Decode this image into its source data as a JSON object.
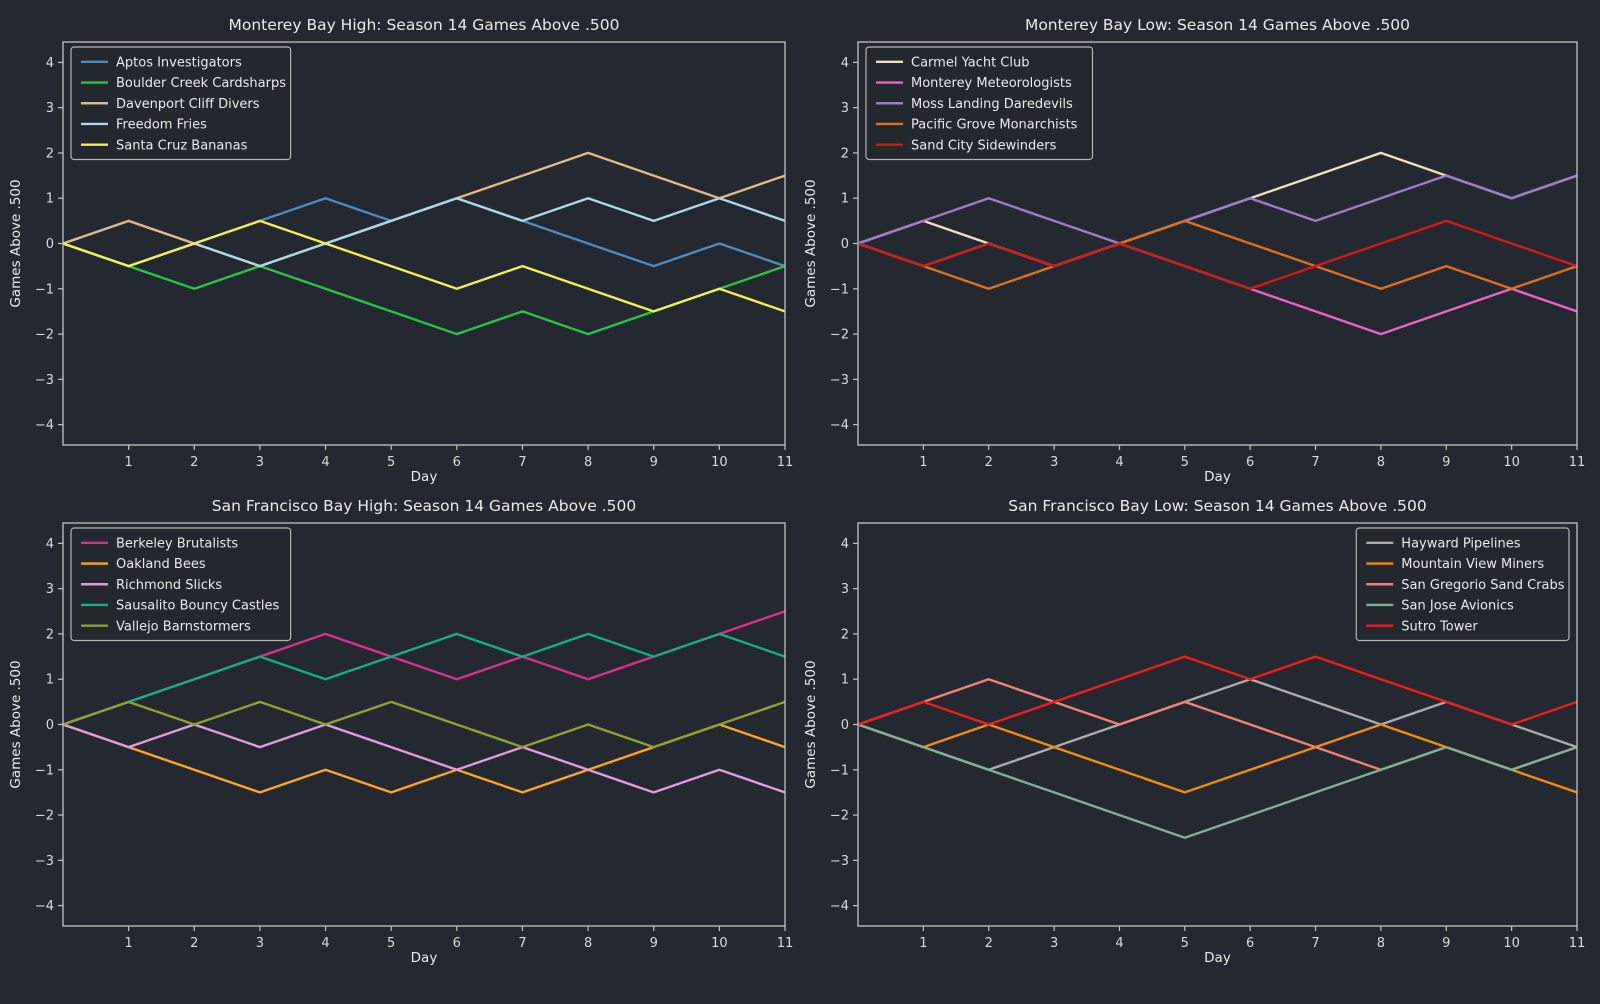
{
  "figure": {
    "background": "#242830",
    "text_color": "#e9eaec",
    "tick_label_color": "#d8dadc",
    "spine_color": "#c4c4c4",
    "legend_border_color": "#b5b5b5",
    "xlabel": "Day",
    "ylabel": "Games Above .500"
  },
  "chart_data": [
    {
      "type": "line",
      "title": "Monterey Bay High: Season 14 Games Above .500",
      "xlabel": "Day",
      "ylabel": "Games Above .500",
      "x": [
        0,
        1,
        2,
        3,
        4,
        5,
        6,
        7,
        8,
        9,
        10,
        11
      ],
      "xticks": [
        1,
        2,
        3,
        4,
        5,
        6,
        7,
        8,
        9,
        10,
        11
      ],
      "yticks": [
        -4,
        -3,
        -2,
        -1,
        0,
        1,
        2,
        3,
        4
      ],
      "xlim": [
        0,
        11
      ],
      "ylim": [
        -4.45,
        4.45
      ],
      "grid": false,
      "legend_position": "upper-left",
      "series": [
        {
          "name": "Aptos Investigators",
          "color": "#4e8bc0",
          "values": [
            0,
            0.5,
            0,
            0.5,
            1,
            0.5,
            1,
            0.5,
            0,
            -0.5,
            0,
            -0.5
          ]
        },
        {
          "name": "Boulder Creek Cardsharps",
          "color": "#2bc24a",
          "values": [
            0,
            -0.5,
            -1,
            -0.5,
            -1,
            -1.5,
            -2,
            -1.5,
            -2,
            -1.5,
            -1,
            -0.5
          ]
        },
        {
          "name": "Davenport Cliff Divers",
          "color": "#deb887",
          "values": [
            0,
            0.5,
            0,
            -0.5,
            0,
            0.5,
            1,
            1.5,
            2,
            1.5,
            1,
            1.5
          ]
        },
        {
          "name": "Freedom Fries",
          "color": "#a9d9e8",
          "values": [
            0,
            -0.5,
            0,
            -0.5,
            0,
            0.5,
            1,
            0.5,
            1,
            0.5,
            1,
            0.5
          ]
        },
        {
          "name": "Santa Cruz Bananas",
          "color": "#f2ee54",
          "values": [
            0,
            -0.5,
            0,
            0.5,
            0,
            -0.5,
            -1,
            -0.5,
            -1,
            -1.5,
            -1,
            -1.5
          ]
        }
      ]
    },
    {
      "type": "line",
      "title": "Monterey Bay Low: Season 14 Games Above .500",
      "xlabel": "Day",
      "ylabel": "Games Above .500",
      "x": [
        0,
        1,
        2,
        3,
        4,
        5,
        6,
        7,
        8,
        9,
        10,
        11
      ],
      "xticks": [
        1,
        2,
        3,
        4,
        5,
        6,
        7,
        8,
        9,
        10,
        11
      ],
      "yticks": [
        -4,
        -3,
        -2,
        -1,
        0,
        1,
        2,
        3,
        4
      ],
      "xlim": [
        0,
        11
      ],
      "ylim": [
        -4.45,
        4.45
      ],
      "grid": false,
      "legend_position": "upper-left",
      "series": [
        {
          "name": "Carmel Yacht Club",
          "color": "#efdfc0",
          "values": [
            0,
            0.5,
            0,
            -0.5,
            0,
            0.5,
            1,
            1.5,
            2,
            1.5,
            1,
            1.5
          ]
        },
        {
          "name": "Monterey Meteorologists",
          "color": "#ee62c8",
          "values": [
            0,
            -0.5,
            0,
            -0.5,
            0,
            -0.5,
            -1,
            -1.5,
            -2,
            -1.5,
            -1,
            -1.5
          ]
        },
        {
          "name": "Moss Landing Daredevils",
          "color": "#a07cc8",
          "values": [
            0,
            0.5,
            1,
            0.5,
            0,
            0.5,
            1,
            0.5,
            1,
            1.5,
            1,
            1.5
          ]
        },
        {
          "name": "Pacific Grove Monarchists",
          "color": "#e0701e",
          "values": [
            0,
            -0.5,
            -1,
            -0.5,
            0,
            0.5,
            0,
            -0.5,
            -1,
            -0.5,
            -1,
            -0.5
          ]
        },
        {
          "name": "Sand City Sidewinders",
          "color": "#cf1b1b",
          "values": [
            0,
            -0.5,
            0,
            -0.5,
            0,
            -0.5,
            -1,
            -0.5,
            0,
            0.5,
            0,
            -0.5
          ]
        }
      ]
    },
    {
      "type": "line",
      "title": "San Francisco Bay High: Season 14 Games Above .500",
      "xlabel": "Day",
      "ylabel": "Games Above .500",
      "x": [
        0,
        1,
        2,
        3,
        4,
        5,
        6,
        7,
        8,
        9,
        10,
        11
      ],
      "xticks": [
        1,
        2,
        3,
        4,
        5,
        6,
        7,
        8,
        9,
        10,
        11
      ],
      "yticks": [
        -4,
        -3,
        -2,
        -1,
        0,
        1,
        2,
        3,
        4
      ],
      "xlim": [
        0,
        11
      ],
      "ylim": [
        -4.45,
        4.45
      ],
      "grid": false,
      "legend_position": "upper-left",
      "series": [
        {
          "name": "Berkeley Brutalists",
          "color": "#d9308f",
          "values": [
            0,
            0.5,
            1,
            1.5,
            2,
            1.5,
            1,
            1.5,
            1,
            1.5,
            2,
            2.5
          ]
        },
        {
          "name": "Oakland Bees",
          "color": "#ffa51e",
          "values": [
            0,
            -0.5,
            -1,
            -1.5,
            -1,
            -1.5,
            -1,
            -1.5,
            -1,
            -0.5,
            0,
            -0.5
          ]
        },
        {
          "name": "Richmond Slicks",
          "color": "#e09ae0",
          "values": [
            0,
            -0.5,
            0,
            -0.5,
            0,
            -0.5,
            -1,
            -0.5,
            -1,
            -1.5,
            -1,
            -1.5
          ]
        },
        {
          "name": "Sausalito Bouncy Castles",
          "color": "#13af85",
          "values": [
            0,
            0.5,
            1,
            1.5,
            1,
            1.5,
            2,
            1.5,
            2,
            1.5,
            2,
            1.5
          ]
        },
        {
          "name": "Vallejo Barnstormers",
          "color": "#8fa030",
          "values": [
            0,
            0.5,
            0,
            0.5,
            0,
            0.5,
            0,
            -0.5,
            0,
            -0.5,
            0,
            0.5
          ]
        }
      ]
    },
    {
      "type": "line",
      "title": "San Francisco Bay Low: Season 14 Games Above .500",
      "xlabel": "Day",
      "ylabel": "Games Above .500",
      "x": [
        0,
        1,
        2,
        3,
        4,
        5,
        6,
        7,
        8,
        9,
        10,
        11
      ],
      "xticks": [
        1,
        2,
        3,
        4,
        5,
        6,
        7,
        8,
        9,
        10,
        11
      ],
      "yticks": [
        -4,
        -3,
        -2,
        -1,
        0,
        1,
        2,
        3,
        4
      ],
      "xlim": [
        0,
        11
      ],
      "ylim": [
        -4.45,
        4.45
      ],
      "grid": false,
      "legend_position": "upper-right",
      "series": [
        {
          "name": "Hayward Pipelines",
          "color": "#ababab",
          "values": [
            0,
            -0.5,
            -1,
            -0.5,
            0,
            0.5,
            1,
            0.5,
            0,
            0.5,
            0,
            -0.5
          ]
        },
        {
          "name": "Mountain View Miners",
          "color": "#f28c0a",
          "values": [
            0,
            -0.5,
            0,
            -0.5,
            -1,
            -1.5,
            -1,
            -0.5,
            0,
            -0.5,
            -1,
            -1.5
          ]
        },
        {
          "name": "San Gregorio Sand Crabs",
          "color": "#f28077",
          "values": [
            0,
            0.5,
            1,
            0.5,
            0,
            0.5,
            0,
            -0.5,
            -1,
            -0.5,
            -1,
            -0.5
          ]
        },
        {
          "name": "San Jose Avionics",
          "color": "#80ae96",
          "values": [
            0,
            -0.5,
            -1,
            -1.5,
            -2,
            -2.5,
            -2,
            -1.5,
            -1,
            -0.5,
            -1,
            -0.5
          ]
        },
        {
          "name": "Sutro Tower",
          "color": "#ef1d1d",
          "values": [
            0,
            0.5,
            0,
            0.5,
            1,
            1.5,
            1,
            1.5,
            1,
            0.5,
            0,
            0.5
          ]
        }
      ]
    }
  ]
}
